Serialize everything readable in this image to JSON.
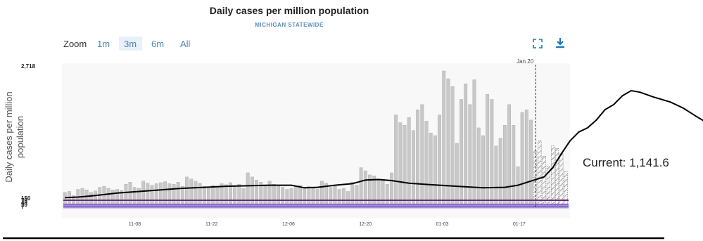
{
  "chart_data": {
    "type": "bar",
    "title": "Daily cases per million population",
    "subtitle": "MICHIGAN STATEWIDE",
    "ylabel_lines": [
      "Daily cases per million",
      "population"
    ],
    "y_max_label": "2,718",
    "ylim": [
      0,
      2718
    ],
    "threshold_labels": [
      "150",
      "70",
      "40",
      "20",
      "7"
    ],
    "thresholds": [
      {
        "value": 150,
        "color": "#6a2a7a"
      },
      {
        "value": 70,
        "color": "#9a60c4"
      },
      {
        "value": 40,
        "color": "#8c9ce0"
      },
      {
        "value": 20,
        "color": "#6a4ac4"
      },
      {
        "value": 7,
        "color": "#b090d8"
      }
    ],
    "x_start": "2020-10-26",
    "x_end": "2021-01-26",
    "x_ticks": [
      {
        "date": "2020-11-08",
        "label": "11-08"
      },
      {
        "date": "2020-11-22",
        "label": "11-22"
      },
      {
        "date": "2020-12-06",
        "label": "12-06"
      },
      {
        "date": "2020-12-20",
        "label": "12-20"
      },
      {
        "date": "2021-01-03",
        "label": "01-03"
      },
      {
        "date": "2021-01-17",
        "label": "01-17"
      }
    ],
    "marker": {
      "label": "Jan 20",
      "date": "2021-01-20"
    },
    "current_label": "Current:",
    "current_value": "1,141.6",
    "bars": [
      300,
      320,
      240,
      360,
      380,
      350,
      300,
      330,
      400,
      420,
      380,
      350,
      360,
      340,
      460,
      500,
      400,
      380,
      520,
      480,
      440,
      470,
      490,
      510,
      470,
      460,
      500,
      420,
      600,
      560,
      520,
      480,
      420,
      380,
      440,
      420,
      470,
      450,
      490,
      430,
      460,
      380,
      680,
      600,
      540,
      500,
      440,
      520,
      460,
      420,
      400,
      360,
      380,
      420,
      440,
      400,
      420,
      380,
      360,
      520,
      480,
      400,
      420,
      360,
      380,
      320,
      500,
      440,
      780,
      720,
      640,
      620,
      560,
      520,
      460,
      680,
      1800,
      1650,
      1600,
      1750,
      1500,
      1900,
      2000,
      1680,
      1450,
      1400,
      1800,
      2650,
      2500,
      2350,
      1250,
      2100,
      2400,
      2000,
      2480,
      1550,
      1400,
      2200,
      2100,
      1200,
      1350,
      1600,
      2000,
      1600,
      800,
      1850,
      1900,
      1700
    ],
    "projected_bars": [
      1100,
      1300,
      1000,
      800,
      1200,
      1150,
      1050,
      700
    ],
    "avg_line": [
      [
        0,
        200
      ],
      [
        3,
        210
      ],
      [
        7,
        240
      ],
      [
        12,
        290
      ],
      [
        17,
        320
      ],
      [
        22,
        350
      ],
      [
        27,
        380
      ],
      [
        32,
        400
      ],
      [
        37,
        420
      ],
      [
        42,
        430
      ],
      [
        47,
        440
      ],
      [
        52,
        440
      ],
      [
        55,
        390
      ],
      [
        58,
        400
      ],
      [
        62,
        440
      ],
      [
        66,
        470
      ],
      [
        69,
        540
      ],
      [
        72,
        550
      ],
      [
        75,
        530
      ],
      [
        79,
        480
      ],
      [
        84,
        450
      ],
      [
        90,
        420
      ],
      [
        96,
        390
      ],
      [
        101,
        400
      ],
      [
        104,
        440
      ],
      [
        107,
        520
      ],
      [
        110,
        600
      ],
      [
        112,
        780
      ],
      [
        114,
        1050
      ],
      [
        116,
        1300
      ],
      [
        118,
        1470
      ],
      [
        120,
        1550
      ],
      [
        122,
        1700
      ],
      [
        124,
        1900
      ],
      [
        126,
        2000
      ],
      [
        128,
        2170
      ],
      [
        130,
        2270
      ],
      [
        132,
        2240
      ],
      [
        135,
        2150
      ],
      [
        139,
        2050
      ],
      [
        142,
        1930
      ],
      [
        145,
        1770
      ],
      [
        148,
        1620
      ],
      [
        150,
        1460
      ]
    ],
    "projection_line": [
      [
        150,
        1460
      ],
      [
        156,
        1230
      ],
      [
        160,
        1040
      ]
    ],
    "colors": {
      "bar": "#c8c8c8",
      "bar_stroke": "#a8a8a8",
      "line": "#000000",
      "accent": "#1a78c2"
    },
    "zoom": {
      "label": "Zoom",
      "options": [
        "1m",
        "3m",
        "6m",
        "All"
      ],
      "selected": "3m"
    }
  }
}
